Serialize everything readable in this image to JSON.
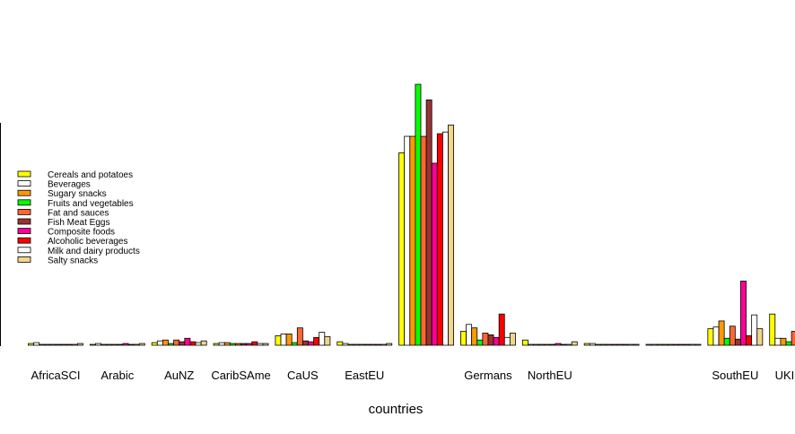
{
  "chart_data": {
    "type": "bar",
    "xlabel": "countries",
    "ylabel": "",
    "title": "",
    "ylim": [
      0,
      300
    ],
    "legend_position": "left",
    "categories": [
      "AfricaSCI",
      "Arabic",
      "AuNZ",
      "CaribSAme",
      "CaUS",
      "EastEU",
      "",
      "Germans",
      "NorthEU",
      "",
      "",
      "SouthEU",
      "UKIRSC"
    ],
    "series": [
      {
        "name": "Cereals and potatoes",
        "color": "#FFFF00",
        "values": [
          2,
          1,
          3,
          2,
          11,
          4,
          222,
          16,
          6,
          2,
          1,
          19,
          36
        ]
      },
      {
        "name": "Beverages",
        "color": "#FFFFFF",
        "values": [
          3,
          2,
          5,
          3,
          13,
          2,
          241,
          24,
          1,
          2,
          1,
          21,
          8
        ]
      },
      {
        "name": "Sugary snacks",
        "color": "#FF9900",
        "values": [
          1,
          1,
          6,
          3,
          13,
          1,
          241,
          20,
          1,
          1,
          1,
          28,
          8
        ]
      },
      {
        "name": "Fruits and vegetables",
        "color": "#00FF00",
        "values": [
          1,
          1,
          2,
          2,
          3,
          1,
          301,
          6,
          1,
          1,
          1,
          8,
          4
        ]
      },
      {
        "name": "Fat and sauces",
        "color": "#FF6633",
        "values": [
          1,
          1,
          6,
          2,
          20,
          1,
          241,
          14,
          1,
          1,
          1,
          22,
          16
        ]
      },
      {
        "name": "Fish Meat Eggs",
        "color": "#993333",
        "values": [
          1,
          1,
          4,
          2,
          5,
          1,
          283,
          12,
          1,
          1,
          1,
          7,
          14
        ]
      },
      {
        "name": "Composite foods",
        "color": "#FF0099",
        "values": [
          1,
          2,
          8,
          2,
          4,
          1,
          210,
          9,
          2,
          1,
          1,
          74,
          16
        ]
      },
      {
        "name": "Alcoholic beverages",
        "color": "#FF0000",
        "values": [
          1,
          1,
          4,
          4,
          9,
          1,
          244,
          36,
          1,
          1,
          1,
          11,
          9
        ]
      },
      {
        "name": "Milk and dairy products",
        "color": "#FFFFFF",
        "values": [
          1,
          1,
          3,
          2,
          15,
          1,
          246,
          9,
          1,
          1,
          1,
          35,
          10
        ]
      },
      {
        "name": "Salty snacks",
        "color": "#F0D58C",
        "values": [
          2,
          2,
          5,
          2,
          10,
          2,
          254,
          14,
          4,
          1,
          1,
          19,
          11
        ]
      }
    ]
  }
}
